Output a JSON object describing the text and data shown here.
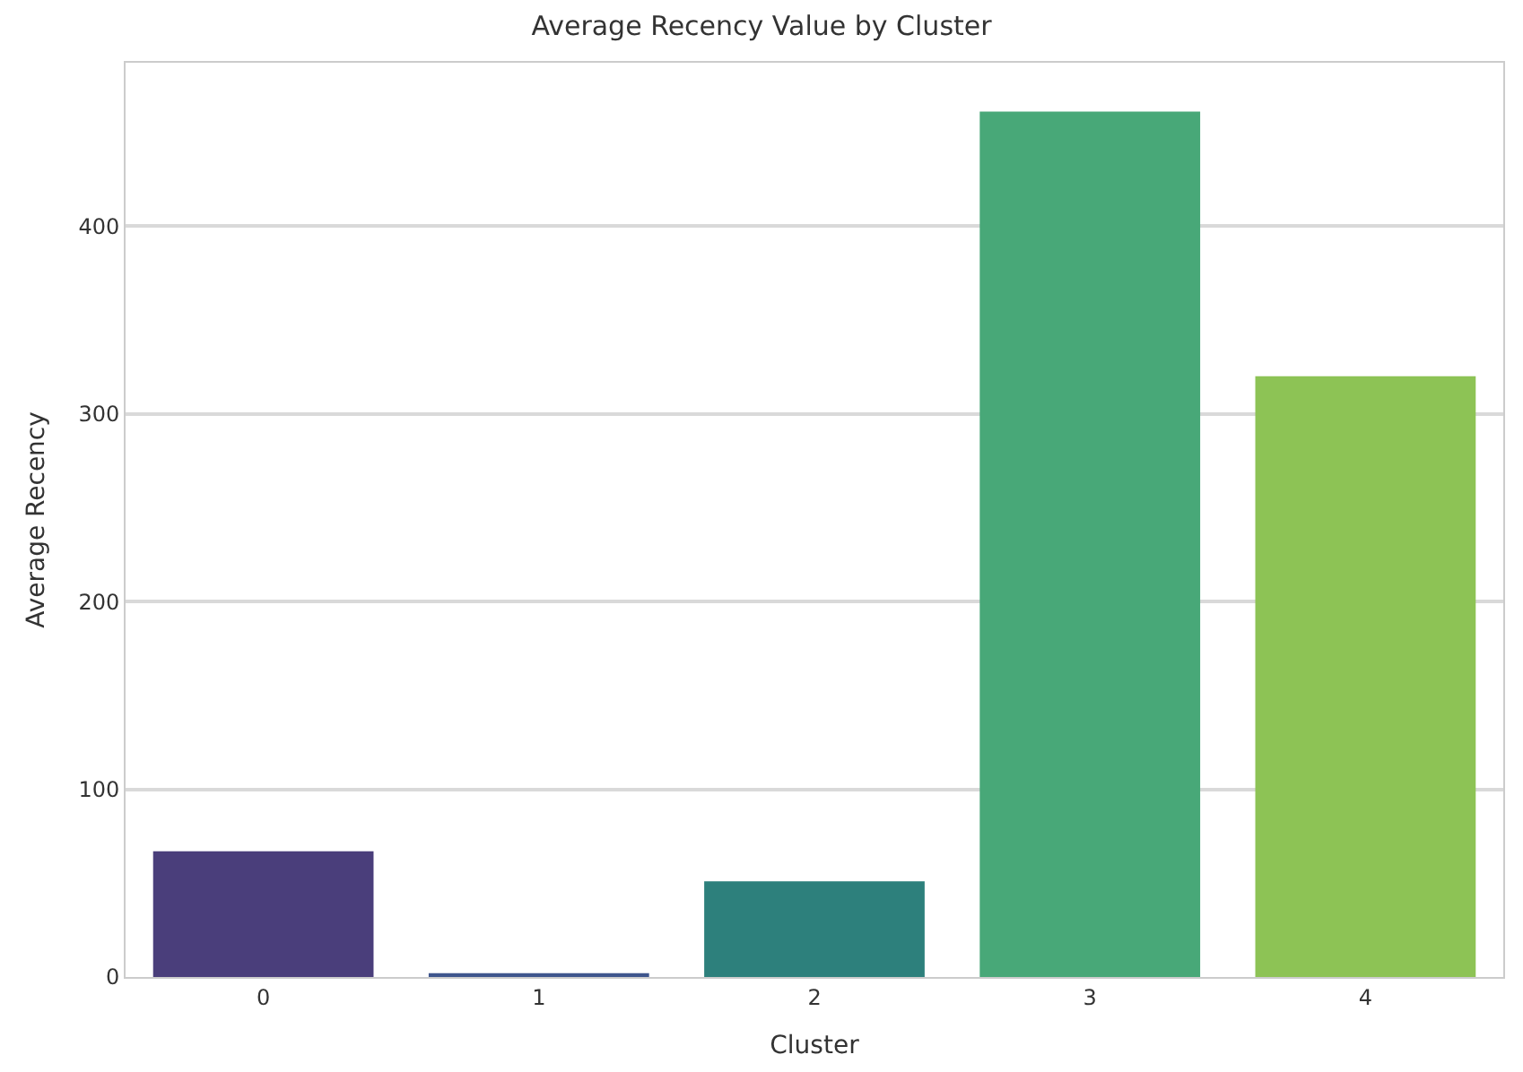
{
  "chart_data": {
    "type": "bar",
    "title": "Average Recency Value by Cluster",
    "xlabel": "Cluster",
    "ylabel": "Average Recency",
    "categories": [
      "0",
      "1",
      "2",
      "3",
      "4"
    ],
    "values": [
      67,
      2,
      51,
      461,
      320
    ],
    "colors": [
      "#4a3e7b",
      "#3e558c",
      "#2d807c",
      "#48a878",
      "#8dc355"
    ],
    "ylim": [
      0,
      487
    ],
    "yticks": [
      0,
      100,
      200,
      300,
      400
    ],
    "grid": "y"
  }
}
